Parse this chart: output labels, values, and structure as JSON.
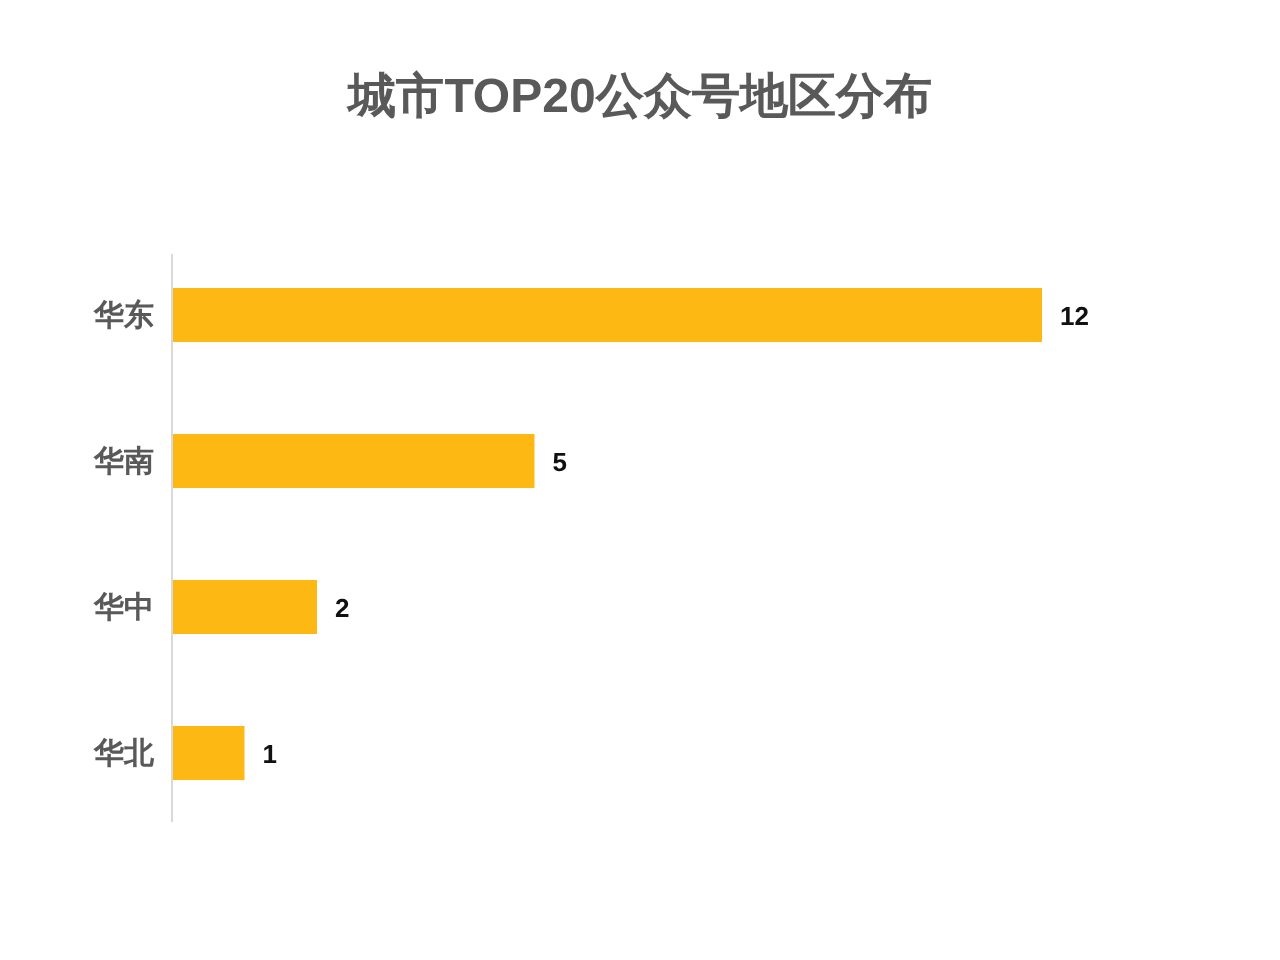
{
  "chart_data": {
    "type": "bar",
    "orientation": "horizontal",
    "title": "城市TOP20公众号地区分布",
    "categories": [
      "华东",
      "华南",
      "华中",
      "华北"
    ],
    "values": [
      12,
      5,
      2,
      1
    ],
    "color": "#fdb813",
    "tick_labels": "y",
    "data_labels": true
  }
}
